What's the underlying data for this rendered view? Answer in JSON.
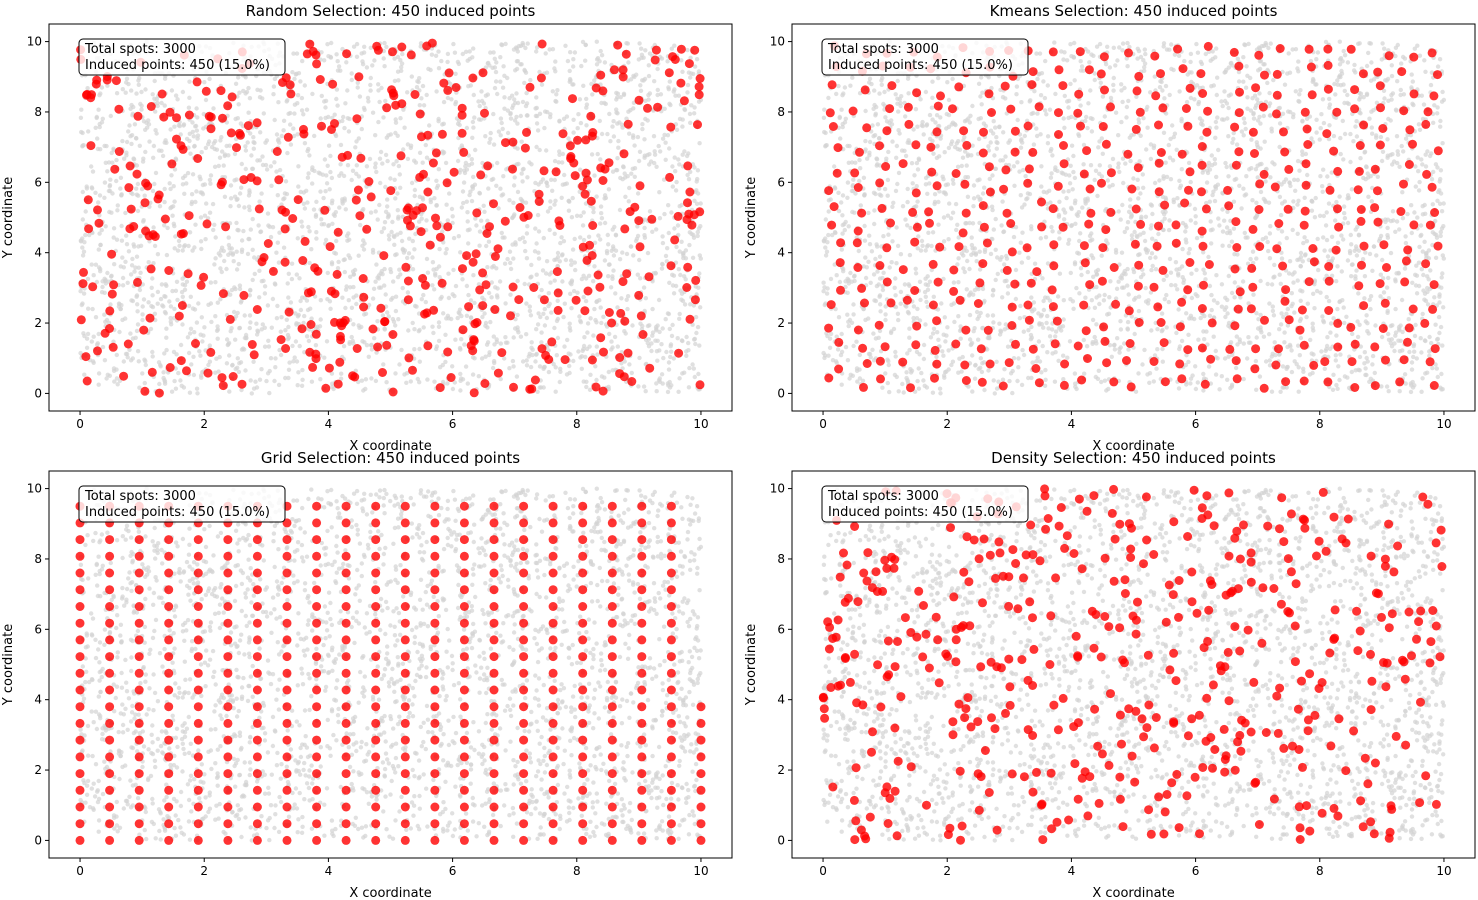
{
  "colors": {
    "background_point": "#d3d3d3",
    "induced_point": "#ff0000",
    "axes": "#000000"
  },
  "chart_data": [
    {
      "type": "scatter",
      "title": "Random Selection: 450 induced points",
      "xlabel": "X coordinate",
      "ylabel": "Y coordinate",
      "xlim": [
        -0.5,
        10.5
      ],
      "ylim": [
        -0.5,
        10.5
      ],
      "xticks": [
        0,
        2,
        4,
        6,
        8,
        10
      ],
      "yticks": [
        0,
        2,
        4,
        6,
        8,
        10
      ],
      "annotation_lines": [
        "Total spots: 3000",
        "Induced points: 450 (15.0%)"
      ],
      "series": [
        {
          "role": "all_spots",
          "count": 3000,
          "distribution": "uniform",
          "color": "#d3d3d3",
          "marker_size_hint": "small"
        },
        {
          "role": "induced",
          "count": 450,
          "method": "random",
          "color": "#ff0000",
          "marker_size_hint": "large"
        }
      ]
    },
    {
      "type": "scatter",
      "title": "Kmeans Selection: 450 induced points",
      "xlabel": "X coordinate",
      "ylabel": "Y coordinate",
      "xlim": [
        -0.5,
        10.5
      ],
      "ylim": [
        -0.5,
        10.5
      ],
      "xticks": [
        0,
        2,
        4,
        6,
        8,
        10
      ],
      "yticks": [
        0,
        2,
        4,
        6,
        8,
        10
      ],
      "annotation_lines": [
        "Total spots: 3000",
        "Induced points: 450 (15.0%)"
      ],
      "series": [
        {
          "role": "all_spots",
          "count": 3000,
          "distribution": "uniform",
          "color": "#d3d3d3"
        },
        {
          "role": "induced",
          "count": 450,
          "method": "kmeans",
          "color": "#ff0000"
        }
      ]
    },
    {
      "type": "scatter",
      "title": "Grid Selection: 450 induced points",
      "xlabel": "X coordinate",
      "ylabel": "Y coordinate",
      "xlim": [
        -0.5,
        10.5
      ],
      "ylim": [
        -0.5,
        10.5
      ],
      "xticks": [
        0,
        2,
        4,
        6,
        8,
        10
      ],
      "yticks": [
        0,
        2,
        4,
        6,
        8,
        10
      ],
      "annotation_lines": [
        "Total spots: 3000",
        "Induced points: 450 (15.0%)"
      ],
      "series": [
        {
          "role": "all_spots",
          "count": 3000,
          "distribution": "uniform",
          "color": "#d3d3d3"
        },
        {
          "role": "induced",
          "count": 450,
          "method": "grid",
          "color": "#ff0000",
          "grid_columns": 22,
          "grid_rows": 21,
          "grid_x_range": [
            0,
            10
          ],
          "grid_y_range": [
            0,
            9.5
          ]
        }
      ]
    },
    {
      "type": "scatter",
      "title": "Density Selection: 450 induced points",
      "xlabel": "X coordinate",
      "ylabel": "Y coordinate",
      "xlim": [
        -0.5,
        10.5
      ],
      "ylim": [
        -0.5,
        10.5
      ],
      "xticks": [
        0,
        2,
        4,
        6,
        8,
        10
      ],
      "yticks": [
        0,
        2,
        4,
        6,
        8,
        10
      ],
      "annotation_lines": [
        "Total spots: 3000",
        "Induced points: 450 (15.0%)"
      ],
      "series": [
        {
          "role": "all_spots",
          "count": 3000,
          "distribution": "uniform",
          "color": "#d3d3d3"
        },
        {
          "role": "induced",
          "count": 450,
          "method": "density",
          "color": "#ff0000"
        }
      ]
    }
  ]
}
